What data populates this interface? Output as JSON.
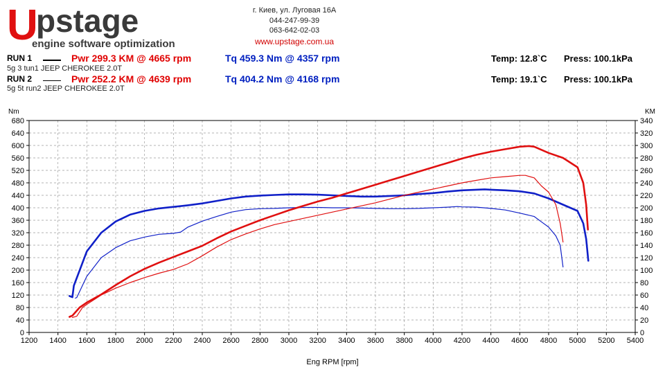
{
  "brand": {
    "logo_mark": "U",
    "logo_word": "pstage",
    "slogan": "engine software optimization",
    "address": "г. Киев, ул. Луговая 16А",
    "phone1": "044-247-99-39",
    "phone2": "063-642-02-03",
    "website": "www.upstage.com.ua",
    "colors": {
      "logo_red": "#e01010",
      "logo_dark": "#3a3a3a"
    }
  },
  "runs": [
    {
      "name": "RUN 1",
      "description": "5g 3 tun1 JEEP CHEROKEE 2.0T",
      "power": "Pwr  299.3 KM @ 4665 rpm",
      "torque": "Tq 459.3 Nm @ 4357 rpm",
      "temp": "Temp: 12.8`C",
      "press": "Press: 100.1kPa"
    },
    {
      "name": "RUN 2",
      "description": "5g 5t run2 JEEP CHEROKEE 2.0T",
      "power": "Pwr  252.2 KM @ 4639 rpm",
      "torque": "Tq 404.2 Nm @ 4168 rpm",
      "temp": "Temp: 19.1`C",
      "press": "Press: 100.1kPa"
    }
  ],
  "chart_data": {
    "type": "line",
    "xlabel": "Eng RPM [rpm]",
    "ylabel_left": "Nm",
    "ylabel_right": "KM",
    "xlim": [
      1200,
      5400
    ],
    "ylim_left": [
      0,
      680
    ],
    "ylim_right": [
      0,
      340
    ],
    "x_ticks": [
      1200,
      1400,
      1600,
      1800,
      2000,
      2200,
      2400,
      2600,
      2800,
      3000,
      3200,
      3400,
      3600,
      3800,
      4000,
      4200,
      4400,
      4600,
      4800,
      5000,
      5200,
      5400
    ],
    "y_left_ticks": [
      0,
      40,
      80,
      120,
      160,
      200,
      240,
      280,
      320,
      360,
      400,
      440,
      480,
      520,
      560,
      600,
      640,
      680
    ],
    "y_right_ticks": [
      0,
      20,
      40,
      60,
      80,
      100,
      120,
      140,
      160,
      180,
      200,
      220,
      240,
      260,
      280,
      300,
      320,
      340
    ],
    "grid": true,
    "colors": {
      "power": "#e01010",
      "torque": "#1020c8"
    },
    "series": [
      {
        "run": "RUN 1",
        "quantity": "torque",
        "axis": "left",
        "width": "thick",
        "points": [
          [
            1480,
            117
          ],
          [
            1500,
            113
          ],
          [
            1510,
            150
          ],
          [
            1600,
            260
          ],
          [
            1700,
            320
          ],
          [
            1800,
            356
          ],
          [
            1900,
            378
          ],
          [
            2000,
            390
          ],
          [
            2100,
            398
          ],
          [
            2200,
            403
          ],
          [
            2300,
            408
          ],
          [
            2400,
            414
          ],
          [
            2500,
            422
          ],
          [
            2600,
            430
          ],
          [
            2700,
            436
          ],
          [
            2800,
            439
          ],
          [
            2900,
            441
          ],
          [
            3000,
            443
          ],
          [
            3100,
            443
          ],
          [
            3200,
            442
          ],
          [
            3300,
            440
          ],
          [
            3400,
            438
          ],
          [
            3500,
            436
          ],
          [
            3600,
            436
          ],
          [
            3700,
            438
          ],
          [
            3800,
            440
          ],
          [
            3900,
            444
          ],
          [
            4000,
            447
          ],
          [
            4100,
            452
          ],
          [
            4200,
            456
          ],
          [
            4300,
            458
          ],
          [
            4357,
            459
          ],
          [
            4400,
            458
          ],
          [
            4500,
            456
          ],
          [
            4600,
            453
          ],
          [
            4700,
            446
          ],
          [
            4800,
            430
          ],
          [
            4900,
            410
          ],
          [
            5000,
            390
          ],
          [
            5040,
            350
          ],
          [
            5060,
            300
          ],
          [
            5075,
            230
          ]
        ]
      },
      {
        "run": "RUN 2",
        "quantity": "torque",
        "axis": "left",
        "width": "thin",
        "points": [
          [
            1520,
            110
          ],
          [
            1530,
            112
          ],
          [
            1600,
            180
          ],
          [
            1700,
            240
          ],
          [
            1800,
            272
          ],
          [
            1900,
            294
          ],
          [
            2000,
            306
          ],
          [
            2100,
            315
          ],
          [
            2200,
            318
          ],
          [
            2250,
            322
          ],
          [
            2300,
            338
          ],
          [
            2400,
            357
          ],
          [
            2500,
            372
          ],
          [
            2600,
            386
          ],
          [
            2700,
            394
          ],
          [
            2800,
            397
          ],
          [
            2900,
            398
          ],
          [
            3000,
            400
          ],
          [
            3100,
            401
          ],
          [
            3200,
            401
          ],
          [
            3300,
            400
          ],
          [
            3400,
            400
          ],
          [
            3500,
            399
          ],
          [
            3600,
            398
          ],
          [
            3700,
            397
          ],
          [
            3800,
            397
          ],
          [
            3900,
            398
          ],
          [
            4000,
            400
          ],
          [
            4100,
            402
          ],
          [
            4168,
            404
          ],
          [
            4200,
            403
          ],
          [
            4300,
            402
          ],
          [
            4400,
            398
          ],
          [
            4500,
            393
          ],
          [
            4600,
            383
          ],
          [
            4700,
            372
          ],
          [
            4750,
            355
          ],
          [
            4800,
            338
          ],
          [
            4850,
            310
          ],
          [
            4880,
            280
          ],
          [
            4900,
            210
          ]
        ]
      },
      {
        "run": "RUN 1",
        "quantity": "power",
        "axis": "right",
        "width": "thick",
        "points": [
          [
            1480,
            25
          ],
          [
            1500,
            27
          ],
          [
            1550,
            40
          ],
          [
            1600,
            48
          ],
          [
            1700,
            61
          ],
          [
            1800,
            76
          ],
          [
            1900,
            90
          ],
          [
            2000,
            102
          ],
          [
            2100,
            112
          ],
          [
            2200,
            121
          ],
          [
            2300,
            130
          ],
          [
            2400,
            139
          ],
          [
            2500,
            151
          ],
          [
            2600,
            162
          ],
          [
            2700,
            171
          ],
          [
            2800,
            180
          ],
          [
            2900,
            188
          ],
          [
            3000,
            196
          ],
          [
            3100,
            203
          ],
          [
            3200,
            210
          ],
          [
            3300,
            216
          ],
          [
            3400,
            223
          ],
          [
            3500,
            230
          ],
          [
            3600,
            237
          ],
          [
            3700,
            244
          ],
          [
            3800,
            251
          ],
          [
            3900,
            258
          ],
          [
            4000,
            265
          ],
          [
            4100,
            272
          ],
          [
            4200,
            279
          ],
          [
            4300,
            285
          ],
          [
            4400,
            290
          ],
          [
            4500,
            294
          ],
          [
            4600,
            298
          ],
          [
            4665,
            299
          ],
          [
            4700,
            298
          ],
          [
            4800,
            288
          ],
          [
            4900,
            280
          ],
          [
            5000,
            265
          ],
          [
            5040,
            240
          ],
          [
            5060,
            205
          ],
          [
            5072,
            165
          ]
        ]
      },
      {
        "run": "RUN 2",
        "quantity": "power",
        "axis": "right",
        "width": "thin",
        "points": [
          [
            1500,
            24
          ],
          [
            1530,
            26
          ],
          [
            1570,
            40
          ],
          [
            1600,
            45
          ],
          [
            1700,
            60
          ],
          [
            1800,
            71
          ],
          [
            1900,
            80
          ],
          [
            2000,
            88
          ],
          [
            2100,
            95
          ],
          [
            2200,
            101
          ],
          [
            2300,
            110
          ],
          [
            2400,
            123
          ],
          [
            2500,
            137
          ],
          [
            2600,
            149
          ],
          [
            2700,
            158
          ],
          [
            2800,
            166
          ],
          [
            2900,
            173
          ],
          [
            3000,
            178
          ],
          [
            3100,
            183
          ],
          [
            3200,
            188
          ],
          [
            3300,
            193
          ],
          [
            3400,
            198
          ],
          [
            3500,
            203
          ],
          [
            3600,
            208
          ],
          [
            3700,
            214
          ],
          [
            3800,
            220
          ],
          [
            3900,
            225
          ],
          [
            4000,
            230
          ],
          [
            4100,
            235
          ],
          [
            4200,
            240
          ],
          [
            4300,
            244
          ],
          [
            4400,
            248
          ],
          [
            4500,
            250
          ],
          [
            4600,
            252
          ],
          [
            4639,
            252
          ],
          [
            4700,
            248
          ],
          [
            4750,
            235
          ],
          [
            4800,
            225
          ],
          [
            4850,
            205
          ],
          [
            4880,
            175
          ],
          [
            4900,
            145
          ]
        ]
      }
    ]
  }
}
